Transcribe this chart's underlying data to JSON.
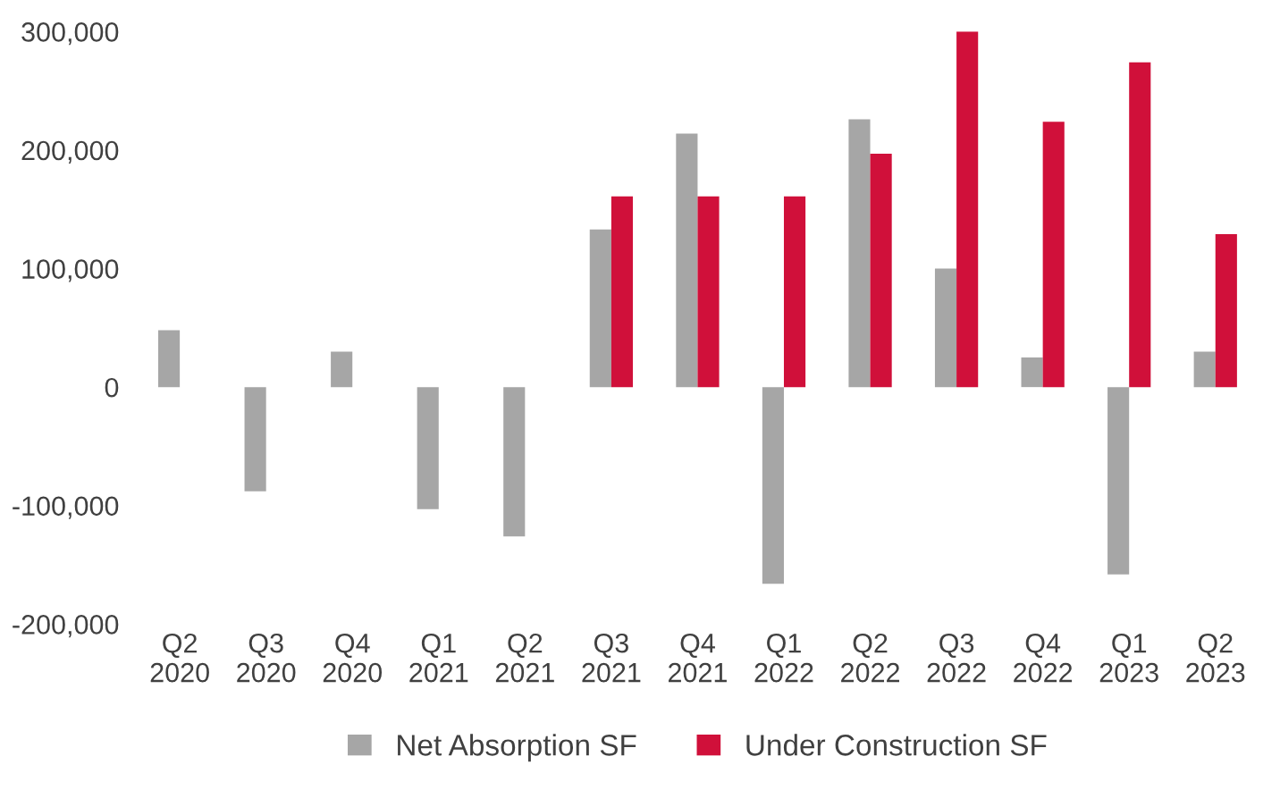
{
  "chart_data": {
    "type": "bar",
    "categories": [
      "Q2\n2020",
      "Q3\n2020",
      "Q4\n2020",
      "Q1\n2021",
      "Q2\n2021",
      "Q3\n2021",
      "Q4\n2021",
      "Q1\n2022",
      "Q2\n2022",
      "Q3\n2022",
      "Q4\n2022",
      "Q1\n2023",
      "Q2\n2023"
    ],
    "series": [
      {
        "name": "Net Absorption SF",
        "color": "#a6a6a6",
        "values": [
          48000,
          -88000,
          30000,
          -103000,
          -126000,
          133000,
          214000,
          -166000,
          226000,
          100000,
          25000,
          -158000,
          30000
        ]
      },
      {
        "name": "Under Construction SF",
        "color": "#d0103a",
        "values": [
          null,
          null,
          null,
          null,
          null,
          161000,
          161000,
          161000,
          197000,
          300000,
          224000,
          274000,
          129000
        ]
      }
    ],
    "ylim": [
      -200000,
      300000
    ],
    "yticks": [
      {
        "value": -200000,
        "label": "-200,000"
      },
      {
        "value": -100000,
        "label": "-100,000"
      },
      {
        "value": 0,
        "label": "0"
      },
      {
        "value": 100000,
        "label": "100,000"
      },
      {
        "value": 200000,
        "label": "200,000"
      },
      {
        "value": 300000,
        "label": "300,000"
      }
    ],
    "grid": false,
    "legend": "bottom"
  }
}
